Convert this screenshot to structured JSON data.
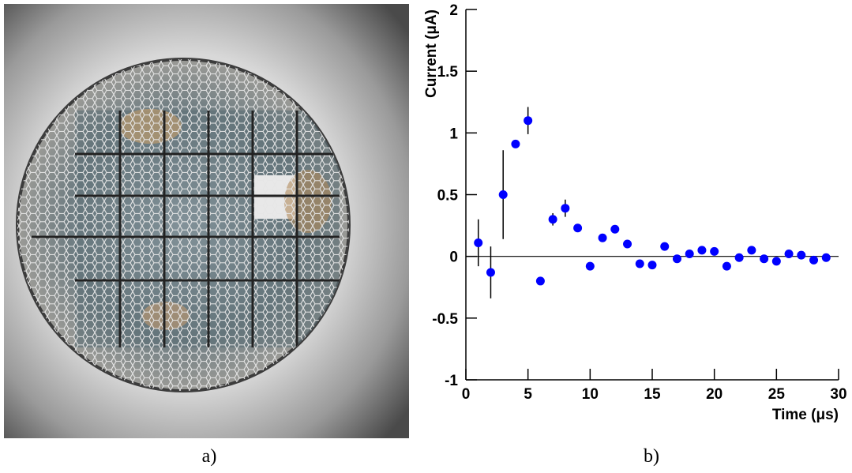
{
  "panel_labels": [
    "a)",
    "b)"
  ],
  "chart_data": {
    "type": "scatter",
    "xlabel": "Time (μs)",
    "ylabel": "Current (μA)",
    "x": [
      1,
      2,
      3,
      4,
      5,
      6,
      7,
      8,
      9,
      10,
      11,
      12,
      13,
      14,
      15,
      16,
      17,
      18,
      19,
      20,
      21,
      22,
      23,
      24,
      25,
      26,
      27,
      28,
      29
    ],
    "series": [
      {
        "color": "#0000ff",
        "values": [
          0.11,
          -0.13,
          0.5,
          0.91,
          1.1,
          -0.2,
          0.3,
          0.39,
          0.23,
          -0.08,
          0.15,
          0.22,
          0.1,
          -0.06,
          -0.07,
          0.08,
          -0.02,
          0.02,
          0.05,
          0.04,
          -0.08,
          -0.01,
          0.05,
          -0.02,
          -0.04,
          0.02,
          0.01,
          -0.03,
          -0.01
        ],
        "errors": [
          0.19,
          0.21,
          0.36,
          null,
          0.11,
          null,
          0.05,
          0.07,
          null,
          null,
          null,
          null,
          null,
          null,
          null,
          null,
          null,
          null,
          null,
          null,
          null,
          null,
          null,
          null,
          null,
          null,
          null,
          null,
          null
        ]
      }
    ],
    "xlim": [
      0,
      30
    ],
    "xticks": [
      0,
      5,
      10,
      15,
      20,
      25,
      30
    ],
    "ylim": [
      -1,
      2
    ],
    "yticks": [
      -1,
      -0.5,
      0,
      0.5,
      1,
      1.5,
      2
    ],
    "zero_line": true
  }
}
